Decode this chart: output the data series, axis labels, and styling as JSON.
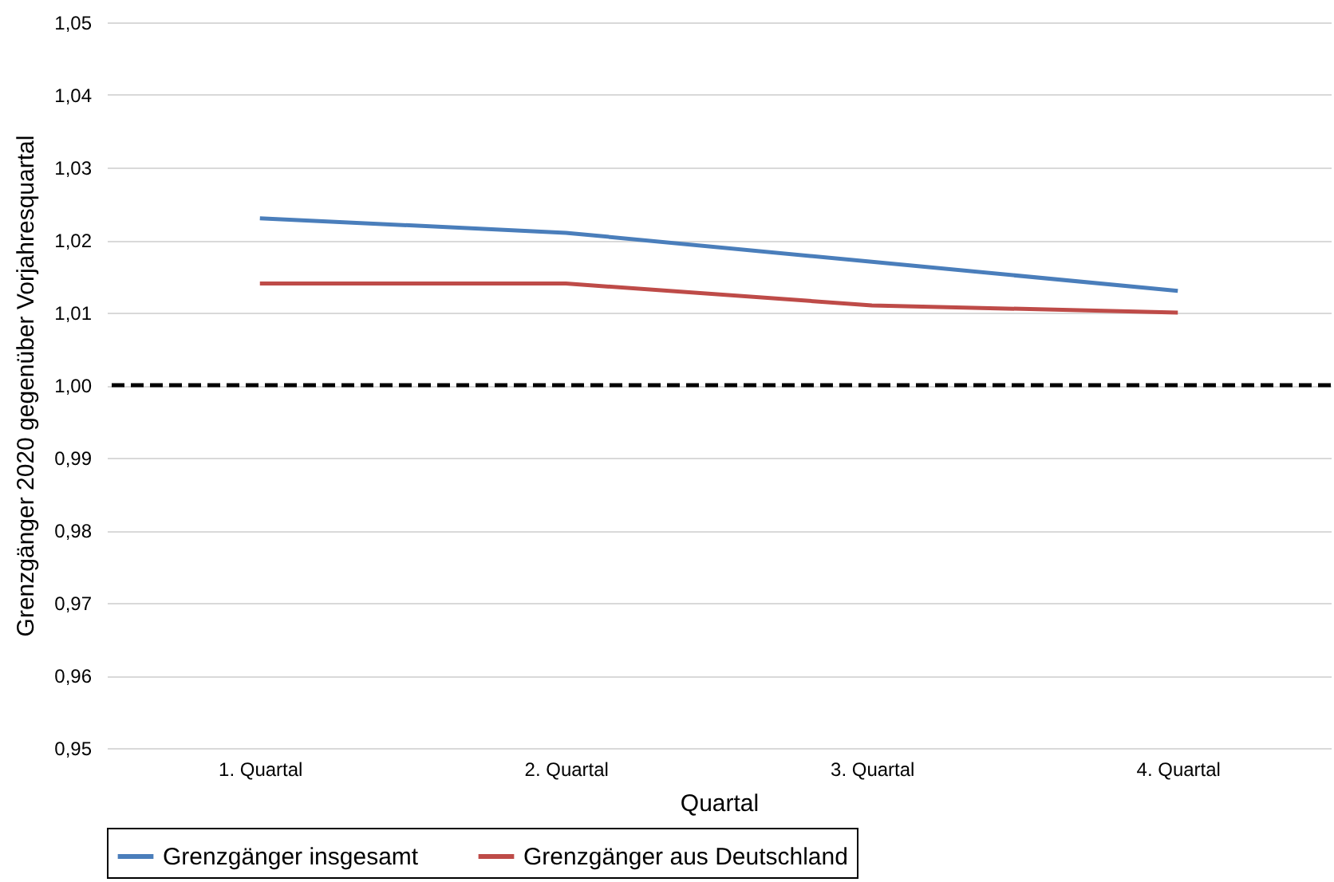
{
  "chart_data": {
    "type": "line",
    "xlabel": "Quartal",
    "ylabel": "Grenzgänger 2020 gegenüber Vorjahresquartal",
    "categories": [
      "1. Quartal",
      "2. Quartal",
      "3. Quartal",
      "4. Quartal"
    ],
    "series": [
      {
        "name": "Grenzgänger insgesamt",
        "color": "#4a7ebb",
        "values": [
          1.023,
          1.021,
          1.017,
          1.013
        ]
      },
      {
        "name": "Grenzgänger aus Deutschland",
        "color": "#be4b48",
        "values": [
          1.014,
          1.014,
          1.011,
          1.01
        ]
      }
    ],
    "ylim": [
      0.95,
      1.05
    ],
    "yticks": [
      {
        "value": 0.95,
        "label": "0,95"
      },
      {
        "value": 0.96,
        "label": "0,96"
      },
      {
        "value": 0.97,
        "label": "0,97"
      },
      {
        "value": 0.98,
        "label": "0,98"
      },
      {
        "value": 0.99,
        "label": "0,99"
      },
      {
        "value": 1.0,
        "label": "1,00"
      },
      {
        "value": 1.01,
        "label": "1,01"
      },
      {
        "value": 1.02,
        "label": "1,02"
      },
      {
        "value": 1.03,
        "label": "1,03"
      },
      {
        "value": 1.04,
        "label": "1,04"
      },
      {
        "value": 1.05,
        "label": "1,05"
      }
    ],
    "ref_lines": [
      {
        "axis": "y",
        "value": 1.0,
        "color": "#000000",
        "line_style": "dashed"
      }
    ],
    "grid": "y",
    "legend": "bottom",
    "line_style": "solid",
    "marker": "none"
  }
}
